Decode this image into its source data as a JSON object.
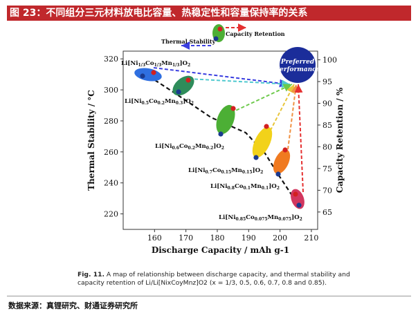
{
  "header": {
    "title": "图 23：不同组分三元材料放电比容量、热稳定性和容量保持率的关系"
  },
  "footer": {
    "source": "数据来源：真锂研究、财通证券研究所"
  },
  "caption": {
    "label": "Fig. 11.",
    "text": "A map of relationship between discharge capacity, and thermal stability and capacity retention of Li/Li[NixCoyMnz]O2 (x = 1/3, 0.5, 0.6, 0.7, 0.8 and 0.85)."
  },
  "colors": {
    "blue_dot": "#1a3a8f",
    "red_dot": "#d32020",
    "preferred": "#1b2d9a",
    "c1": "#2f6fe0",
    "c2": "#2e8c5a",
    "c3": "#4caf35",
    "c4": "#f2d21a",
    "c5": "#f07a20",
    "c6": "#d2365e",
    "arrow_blue": "#3a3ee0",
    "arrow_cyan": "#4ec9cf",
    "arrow_green": "#6cc94a",
    "arrow_yellow": "#e8c53a",
    "arrow_orange": "#f09040",
    "arrow_red": "#e53030"
  },
  "chart_data": {
    "type": "scatter",
    "xlabel": "Discharge Capacity / mAh g-1",
    "ylabel_left": "Thermal Stability / °C",
    "ylabel_right": "Capacity Retention / %",
    "xlim": [
      150,
      212
    ],
    "ylim_left": [
      210,
      325
    ],
    "ylim_right": [
      61,
      102
    ],
    "x_ticks": [
      160,
      170,
      180,
      190,
      200,
      210
    ],
    "y_left_ticks": [
      220,
      240,
      260,
      280,
      300,
      320
    ],
    "y_right_ticks": [
      65,
      70,
      75,
      80,
      85,
      90,
      95,
      100
    ],
    "legend_labels": {
      "thermal": "Thermal Stability",
      "retention": "Capacity Retention",
      "preferred_line1": "Preferred",
      "preferred_line2": "Performance"
    },
    "materials": [
      {
        "label": "Li[Ni1/3Co1/3Mn1/3]O2",
        "capacity": 163,
        "thermal": 306,
        "retention": 94.5
      },
      {
        "label": "Li[Ni0.5Co0.2Mn0.3]O2",
        "capacity": 175,
        "thermal": 295,
        "retention": 92.5
      },
      {
        "label": "Li[Ni0.6Co0.2Mn0.2]O2",
        "capacity": 187,
        "thermal": 268,
        "retention": 88
      },
      {
        "label": "Li[Ni0.7Co0.15Mn0.15]O2",
        "capacity": 196,
        "thermal": 255,
        "retention": 83
      },
      {
        "label": "Li[Ni0.8Co0.1Mn0.1]O2",
        "capacity": 203,
        "thermal": 241,
        "retention": 79
      },
      {
        "label": "Li[Ni0.85Co0.075Mn0.075]O2",
        "capacity": 206,
        "thermal": 218,
        "retention": 70
      }
    ]
  }
}
